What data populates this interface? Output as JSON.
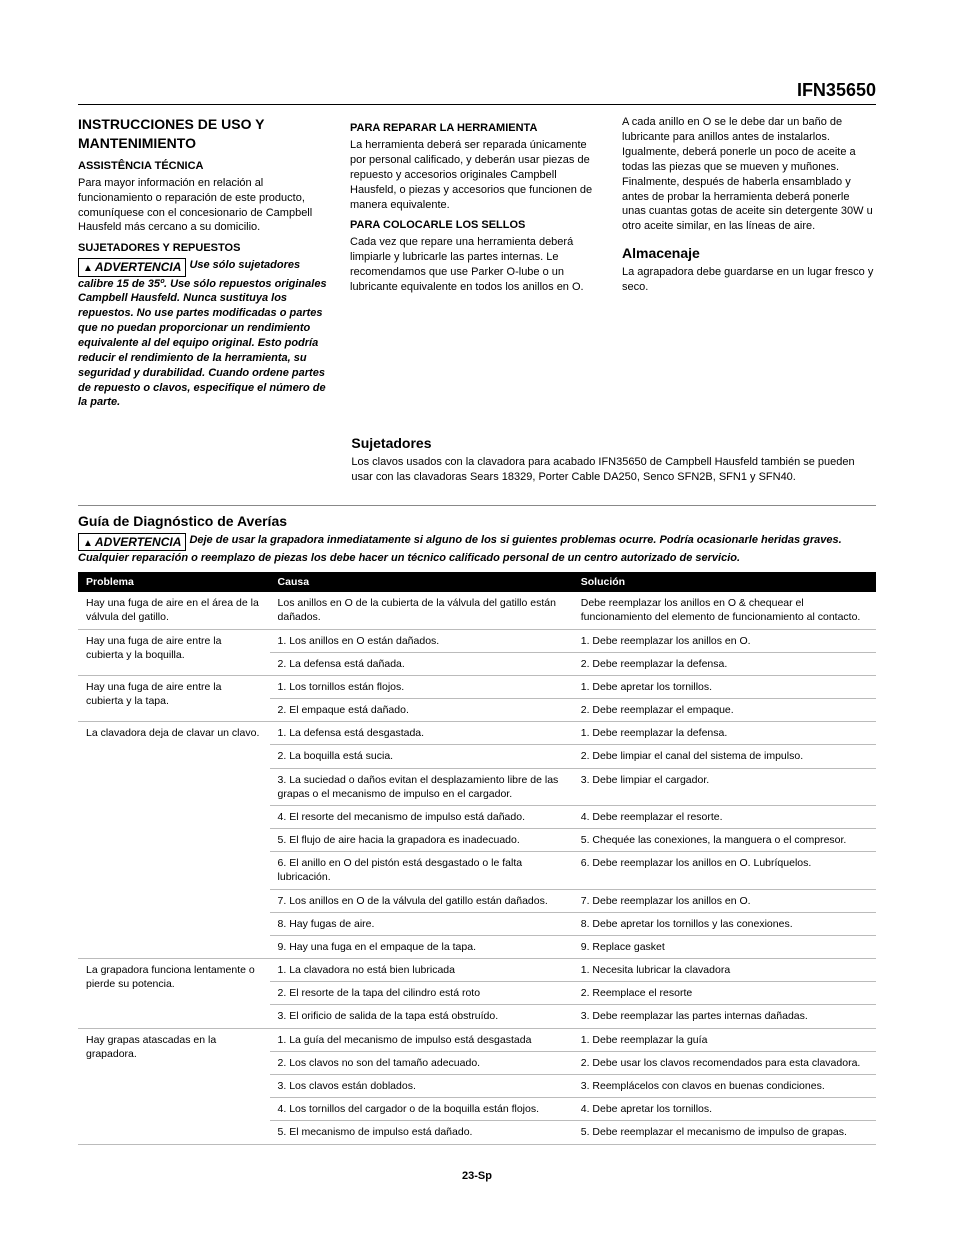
{
  "model": "IFN35650",
  "col1": {
    "h1": "INSTRUCCIONES DE USO Y MANTENIMIENTO",
    "h2a": "ASSISTÊNCIA TÉCNICA",
    "p1": "Para mayor información en relación al funcionamiento o reparación de este producto, comuníquese con el concesionario de Campbell Hausfeld más cercano a su domicilio.",
    "h2b": "SUJETADORES Y REPUESTOS",
    "warn_label": "ADVERTENCIA",
    "warn_text": "Use sólo sujetadores calibre 15 de 35º. Use sólo repuestos originales Campbell Hausfeld. Nunca sustituya los repuestos. No use partes modificadas o partes que no puedan proporcionar un rendimiento equivalente al del equipo original. Esto podría reducir el rendimiento de la herramienta, su seguridad y durabilidad. Cuando ordene partes de repuesto o clavos, especifique el número de la parte."
  },
  "col2": {
    "h2a": "PARA REPARAR LA HERRAMIENTA",
    "p1": "La herramienta deberá ser reparada únicamente por personal calificado, y deberán usar piezas de repuesto y accesorios originales Campbell Hausfeld, o piezas y accesorios que funcionen de manera equivalente.",
    "h2b": "PARA COLOCARLE LOS SELLOS",
    "p2": "Cada vez que repare una herramienta deberá limpiarle y lubricarle las partes internas. Le recomendamos que use Parker O-lube o un lubricante equivalente en todos los anillos en O."
  },
  "col3": {
    "p1": "A cada anillo en O se le debe dar un baño de lubricante para anillos antes de instalarlos. Igualmente, deberá ponerle un poco de aceite a todas las piezas que se mueven y muñones. Finalmente, después de haberla ensamblado y antes de probar la herramienta deberá ponerle unas cuantas gotas de aceite sin detergente 30W u otro aceite similar, en las líneas de aire.",
    "h3": "Almacenaje",
    "p2": "La agrapadora debe guardarse en un lugar fresco y seco."
  },
  "sujetadores": {
    "h3": "Sujetadores",
    "p": "Los clavos usados con la clavadora para acabado IFN35650 de Campbell Hausfeld también se pueden usar con las clavadoras Sears 18329, Porter Cable DA250, Senco SFN2B, SFN1 y SFN40."
  },
  "guide": {
    "title": "Guía de Diagnóstico de Averías",
    "warn_label": "ADVERTENCIA",
    "warn_text": "Deje de usar la grapadora inmediatamente si alguno de los si guientes problemas ocurre. Podría ocasionarle heridas graves. Cualquier reparación o reemplazo de piezas los debe hacer un técnico calificado personal de un centro autorizado de servicio.",
    "headers": {
      "a": "Problema",
      "b": "Causa",
      "c": "Solución"
    },
    "rows": [
      {
        "problem": "Hay una fuga de aire en el área de la válvula del gatillo.",
        "items": [
          {
            "cause": "Los anillos en O de la cubierta de la válvula del gatillo están dañados.",
            "sol": "Debe reemplazar los anillos en O & chequear el funcionamiento del elemento de funcionamiento al contacto."
          }
        ]
      },
      {
        "problem": "Hay una fuga de aire entre la cubierta y la boquilla.",
        "items": [
          {
            "cause": "1.  Los anillos en O están dañados.",
            "sol": "1.  Debe reemplazar los anillos en O."
          },
          {
            "cause": "2.  La defensa está dañada.",
            "sol": "2.  Debe reemplazar la defensa."
          }
        ]
      },
      {
        "problem": "Hay una fuga de aire entre la cubierta y la tapa.",
        "items": [
          {
            "cause": "1.  Los tornillos  están flojos.",
            "sol": "1.  Debe apretar los tornillos."
          },
          {
            "cause": "2.  El empaque está dañado.",
            "sol": "2.  Debe reemplazar el empaque."
          }
        ]
      },
      {
        "problem": "La clavadora deja de clavar un clavo.",
        "items": [
          {
            "cause": "1.  La defensa está desgastada.",
            "sol": "1.  Debe reemplazar la defensa."
          },
          {
            "cause": "2.  La boquilla está sucia.",
            "sol": "2.  Debe limpiar el canal del sistema de impulso."
          },
          {
            "cause": "3.  La suciedad o daños evitan el desplazamiento libre de las grapas o el mecanismo de impulso en el cargador.",
            "sol": "3.  Debe limpiar el cargador."
          },
          {
            "cause": "4.  El resorte del mecanismo de impulso está dañado.",
            "sol": "4.  Debe reemplazar el resorte."
          },
          {
            "cause": "5.  El flujo de aire hacia la grapadora es inadecuado.",
            "sol": "5.  Chequée las conexiones, la manguera o el compresor."
          },
          {
            "cause": "6.  El anillo en O del pistón está desgastado o le falta lubricación.",
            "sol": "6.  Debe reemplazar los anillos en O. Lubríquelos."
          },
          {
            "cause": "7.  Los anillos en O  de la válvula del gatillo están dañados.",
            "sol": "7.  Debe reemplazar los anillos en O."
          },
          {
            "cause": "8.  Hay fugas de aire.",
            "sol": "8.  Debe apretar los tornillos y las conexiones."
          },
          {
            "cause": "9.  Hay una fuga en el empaque de la tapa.",
            "sol": "9.  Replace gasket"
          }
        ]
      },
      {
        "problem": "La grapadora funciona lentamente o pierde su potencia.",
        "items": [
          {
            "cause": "1.  La clavadora no está bien lubricada",
            "sol": "1.  Necesita lubricar la clavadora"
          },
          {
            "cause": "2.  El resorte de la tapa del cilindro está roto",
            "sol": "2.  Reemplace el resorte"
          },
          {
            "cause": "3.  El orificio de salida de la tapa está obstruído.",
            "sol": "3.  Debe reemplazar las partes internas dañadas."
          }
        ]
      },
      {
        "problem": "Hay grapas atascadas en la grapadora.",
        "items": [
          {
            "cause": "1.  La guía del mecanismo de impulso está desgastada",
            "sol": "1.  Debe reemplazar la guía"
          },
          {
            "cause": "2.  Los clavos no son del tamaño adecuado.",
            "sol": "2.  Debe usar los clavos recomendados para esta clavadora."
          },
          {
            "cause": "3.  Los clavos están doblados.",
            "sol": "3.  Reemplácelos con clavos en buenas condiciones."
          },
          {
            "cause": "4.  Los tornillos del cargador o de la boquilla están flojos.",
            "sol": "4.  Debe apretar los tornillos."
          },
          {
            "cause": "5.  El mecanismo de impulso está dañado.",
            "sol": "5.  Debe reemplazar el mecanismo de impulso de grapas."
          }
        ]
      }
    ]
  },
  "footer": "23-Sp"
}
